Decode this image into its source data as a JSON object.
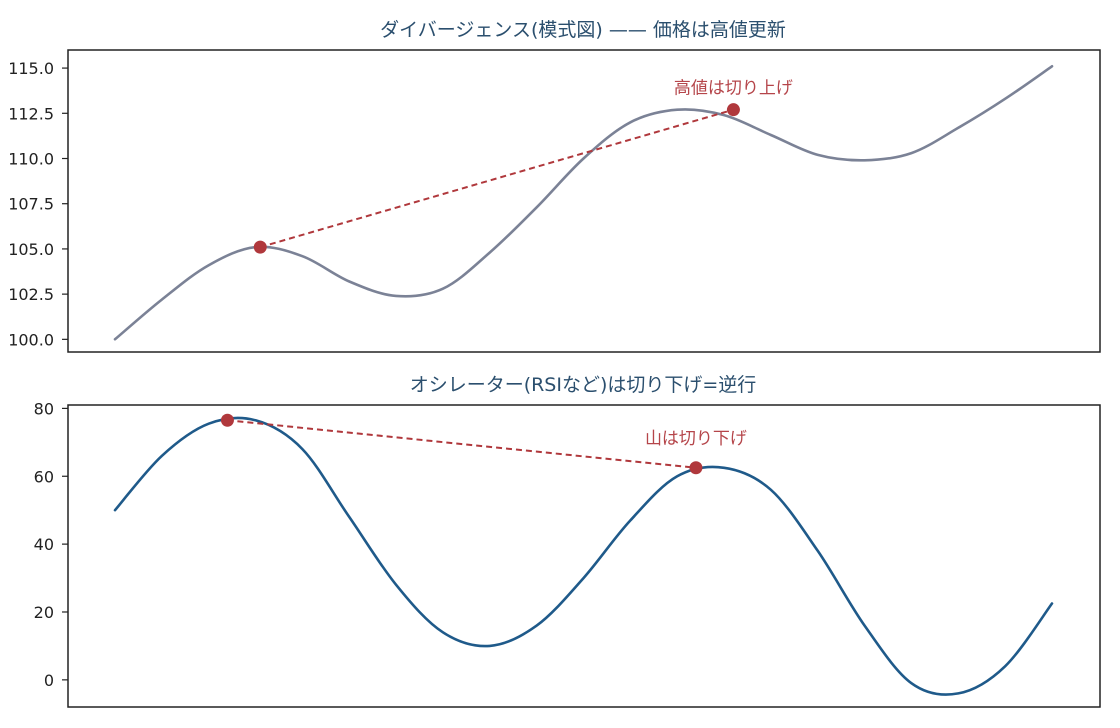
{
  "chart_data": [
    {
      "type": "line",
      "title": "ダイバージェンス(模式図) —— 価格は高値更新",
      "xlabel": "",
      "ylabel": "",
      "ylim": [
        99.3,
        116.0
      ],
      "yticks": [
        "100.0",
        "102.5",
        "105.0",
        "107.5",
        "110.0",
        "112.5",
        "115.0"
      ],
      "ytick_values": [
        100.0,
        102.5,
        105.0,
        107.5,
        110.0,
        112.5,
        115.0
      ],
      "grid": false,
      "series": [
        {
          "color": "#7b8296",
          "x": [
            0,
            1,
            2,
            3,
            4,
            5,
            6,
            7,
            8,
            9,
            10,
            11,
            12,
            13,
            14,
            15,
            16,
            17,
            18,
            19,
            20
          ],
          "y": [
            100.0,
            102.2,
            104.1,
            105.1,
            104.6,
            103.2,
            102.4,
            102.8,
            104.8,
            107.3,
            110.0,
            112.0,
            112.7,
            112.4,
            111.3,
            110.2,
            109.9,
            110.3,
            111.7,
            113.3,
            115.1
          ]
        }
      ],
      "highlight_points": [
        {
          "x": 3.1,
          "y": 105.1
        },
        {
          "x": 13.2,
          "y": 112.7
        }
      ],
      "trend_line": {
        "from": [
          3.1,
          105.1
        ],
        "to": [
          13.2,
          112.7
        ],
        "color": "#b0383c",
        "style": "dashed"
      },
      "annotation": {
        "text": "高値は切り上げ",
        "x": 13.2,
        "y": 113.6
      }
    },
    {
      "type": "line",
      "title": "オシレーター(RSIなど)は切り下げ=逆行",
      "xlabel": "",
      "ylabel": "",
      "ylim": [
        -8,
        81
      ],
      "yticks": [
        "0",
        "20",
        "40",
        "60",
        "80"
      ],
      "ytick_values": [
        0,
        20,
        40,
        60,
        80
      ],
      "grid": false,
      "series": [
        {
          "color": "#1f5a8a",
          "x": [
            0,
            1,
            2,
            3,
            4,
            5,
            6,
            7,
            8,
            9,
            10,
            11,
            12,
            13,
            14,
            15,
            16,
            17,
            18,
            19,
            20
          ],
          "y": [
            50,
            66,
            75.5,
            76.5,
            68,
            48,
            28,
            14,
            10,
            16,
            30,
            47,
            60,
            62.5,
            56,
            38,
            16,
            -1,
            -4,
            4,
            22.5
          ]
        }
      ],
      "highlight_points": [
        {
          "x": 2.4,
          "y": 76.5
        },
        {
          "x": 12.4,
          "y": 62.5
        }
      ],
      "trend_line": {
        "from": [
          2.4,
          76.5
        ],
        "to": [
          12.4,
          62.5
        ],
        "color": "#b0383c",
        "style": "dashed"
      },
      "annotation": {
        "text": "山は切り下げ",
        "x": 12.4,
        "y": 69.5
      }
    }
  ],
  "colors": {
    "price_line": "#7b8296",
    "oscillator_line": "#1f5a8a",
    "highlight": "#b0383c",
    "title": "#2b4f6e",
    "annotation": "#b5454a"
  }
}
